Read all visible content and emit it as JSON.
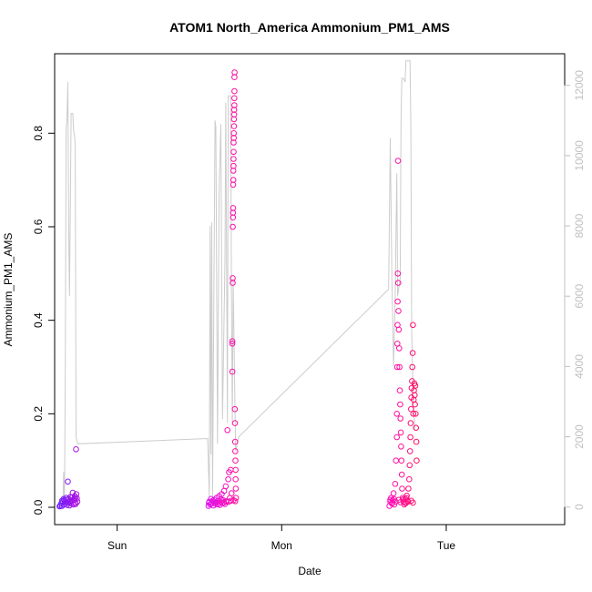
{
  "chart_data": {
    "type": "scatter",
    "title": "ATOM1 North_America Ammonium_PM1_AMS",
    "xlabel": "Date",
    "ylabel": "Ammonium_PM1_AMS",
    "x_unit": "days since Sunday 00:00",
    "xlim": [
      -0.38,
      2.72
    ],
    "ylim": [
      -0.037,
      0.97
    ],
    "y2lim": [
      -500,
      12900
    ],
    "x_ticks": [
      {
        "value": 0,
        "label": "Sun"
      },
      {
        "value": 1,
        "label": "Mon"
      },
      {
        "value": 2,
        "label": "Tue"
      }
    ],
    "y_ticks": [
      {
        "value": 0.0,
        "label": "0.0"
      },
      {
        "value": 0.2,
        "label": "0.2"
      },
      {
        "value": 0.4,
        "label": "0.4"
      },
      {
        "value": 0.6,
        "label": "0.6"
      },
      {
        "value": 0.8,
        "label": "0.8"
      }
    ],
    "y2_ticks": [
      {
        "value": 0,
        "label": "0"
      },
      {
        "value": 2000,
        "label": "2000"
      },
      {
        "value": 4000,
        "label": "4000"
      },
      {
        "value": 6000,
        "label": "6000"
      },
      {
        "value": 8000,
        "label": "8000"
      },
      {
        "value": 10000,
        "label": "10000"
      },
      {
        "value": 12000,
        "label": "12000"
      }
    ],
    "altitude_series": {
      "color": "#cccccc",
      "points": [
        [
          -0.33,
          0
        ],
        [
          -0.325,
          1000
        ],
        [
          -0.32,
          200
        ],
        [
          -0.315,
          4000
        ],
        [
          -0.31,
          10800
        ],
        [
          -0.305,
          11000
        ],
        [
          -0.3,
          12100
        ],
        [
          -0.295,
          8000
        ],
        [
          -0.29,
          6000
        ],
        [
          -0.285,
          8500
        ],
        [
          -0.28,
          11200
        ],
        [
          -0.27,
          11200
        ],
        [
          -0.265,
          10700
        ],
        [
          -0.26,
          10600
        ],
        [
          -0.255,
          10300
        ],
        [
          -0.25,
          2000
        ],
        [
          -0.24,
          1800
        ],
        [
          0.55,
          1950
        ],
        [
          0.56,
          300
        ],
        [
          0.565,
          8000
        ],
        [
          0.57,
          1500
        ],
        [
          0.575,
          8100
        ],
        [
          0.58,
          300
        ],
        [
          0.595,
          11000
        ],
        [
          0.6,
          10800
        ],
        [
          0.61,
          1800
        ],
        [
          0.62,
          9000
        ],
        [
          0.63,
          10900
        ],
        [
          0.64,
          2500
        ],
        [
          0.655,
          7000
        ],
        [
          0.66,
          11500
        ],
        [
          0.67,
          2400
        ],
        [
          0.675,
          11700
        ],
        [
          0.69,
          11700
        ],
        [
          0.695,
          5800
        ],
        [
          0.7,
          2400
        ],
        [
          0.705,
          6500
        ],
        [
          0.72,
          1600
        ],
        [
          0.74,
          2000
        ],
        [
          1.65,
          6200
        ],
        [
          1.66,
          10500
        ],
        [
          1.67,
          6500
        ],
        [
          1.68,
          4000
        ],
        [
          1.69,
          6000
        ],
        [
          1.7,
          9500
        ],
        [
          1.705,
          6000
        ],
        [
          1.72,
          6500
        ],
        [
          1.725,
          11000
        ],
        [
          1.73,
          12200
        ],
        [
          1.74,
          12200
        ],
        [
          1.75,
          12100
        ],
        [
          1.755,
          12700
        ],
        [
          1.77,
          12700
        ],
        [
          1.78,
          12700
        ],
        [
          1.785,
          10800
        ],
        [
          1.79,
          5000
        ],
        [
          1.8,
          3000
        ],
        [
          1.81,
          2200
        ]
      ]
    },
    "series": [
      {
        "color_start": "#6a1fff",
        "color_end": "#b010e0",
        "points": [
          [
            -0.35,
            0.002
          ],
          [
            -0.345,
            0.004
          ],
          [
            -0.34,
            0.008
          ],
          [
            -0.335,
            0.003
          ],
          [
            -0.33,
            0.012
          ],
          [
            -0.325,
            0.006
          ],
          [
            -0.32,
            0.015
          ],
          [
            -0.315,
            0.009
          ],
          [
            -0.31,
            0.02
          ],
          [
            -0.305,
            0.005
          ],
          [
            -0.3,
            0.055
          ],
          [
            -0.298,
            0.011
          ],
          [
            -0.295,
            0.018
          ],
          [
            -0.29,
            0.004
          ],
          [
            -0.285,
            0.022
          ],
          [
            -0.28,
            0.008
          ],
          [
            -0.275,
            0.013
          ],
          [
            -0.27,
            0.031
          ],
          [
            -0.265,
            0.006
          ],
          [
            -0.26,
            0.016
          ],
          [
            -0.257,
            0.024
          ],
          [
            -0.255,
            0.01
          ],
          [
            -0.252,
            0.007
          ],
          [
            -0.25,
            0.124
          ],
          [
            -0.248,
            0.028
          ],
          [
            -0.245,
            0.019
          ],
          [
            -0.242,
            0.012
          ],
          [
            -0.335,
            0.014
          ],
          [
            -0.325,
            0.018
          ],
          [
            -0.315,
            0.012
          ],
          [
            -0.305,
            0.016
          ],
          [
            -0.295,
            0.01
          ],
          [
            -0.285,
            0.014
          ],
          [
            -0.275,
            0.021
          ],
          [
            -0.265,
            0.017
          ],
          [
            -0.255,
            0.02
          ]
        ]
      },
      {
        "color_start": "#e010f0",
        "color_end": "#ff10a0",
        "points": [
          [
            0.555,
            0.003
          ],
          [
            0.56,
            0.012
          ],
          [
            0.565,
            0.006
          ],
          [
            0.57,
            0.018
          ],
          [
            0.575,
            0.009
          ],
          [
            0.58,
            0.014
          ],
          [
            0.585,
            0.004
          ],
          [
            0.59,
            0.016
          ],
          [
            0.595,
            0.008
          ],
          [
            0.6,
            0.011
          ],
          [
            0.605,
            0.02
          ],
          [
            0.61,
            0.006
          ],
          [
            0.615,
            0.013
          ],
          [
            0.62,
            0.024
          ],
          [
            0.625,
            0.005
          ],
          [
            0.63,
            0.017
          ],
          [
            0.635,
            0.028
          ],
          [
            0.64,
            0.009
          ],
          [
            0.645,
            0.015
          ],
          [
            0.65,
            0.035
          ],
          [
            0.655,
            0.007
          ],
          [
            0.66,
            0.045
          ],
          [
            0.665,
            0.012
          ],
          [
            0.67,
            0.165
          ],
          [
            0.675,
            0.06
          ],
          [
            0.68,
            0.075
          ],
          [
            0.685,
            0.02
          ],
          [
            0.69,
            0.08
          ],
          [
            0.695,
            0.03
          ],
          [
            0.7,
            0.29
          ],
          [
            0.7,
            0.35
          ],
          [
            0.7,
            0.355
          ],
          [
            0.702,
            0.48
          ],
          [
            0.702,
            0.49
          ],
          [
            0.703,
            0.6
          ],
          [
            0.704,
            0.62
          ],
          [
            0.704,
            0.63
          ],
          [
            0.705,
            0.64
          ],
          [
            0.705,
            0.69
          ],
          [
            0.706,
            0.7
          ],
          [
            0.706,
            0.72
          ],
          [
            0.707,
            0.73
          ],
          [
            0.707,
            0.745
          ],
          [
            0.708,
            0.76
          ],
          [
            0.708,
            0.78
          ],
          [
            0.709,
            0.79
          ],
          [
            0.709,
            0.8
          ],
          [
            0.71,
            0.815
          ],
          [
            0.71,
            0.83
          ],
          [
            0.711,
            0.84
          ],
          [
            0.711,
            0.85
          ],
          [
            0.712,
            0.86
          ],
          [
            0.712,
            0.875
          ],
          [
            0.713,
            0.89
          ],
          [
            0.713,
            0.92
          ],
          [
            0.714,
            0.93
          ],
          [
            0.715,
            0.21
          ],
          [
            0.716,
            0.18
          ],
          [
            0.717,
            0.14
          ],
          [
            0.718,
            0.12
          ],
          [
            0.719,
            0.1
          ],
          [
            0.72,
            0.08
          ],
          [
            0.72,
            0.06
          ],
          [
            0.721,
            0.04
          ],
          [
            0.722,
            0.02
          ],
          [
            0.558,
            0.01
          ],
          [
            0.572,
            0.008
          ],
          [
            0.588,
            0.012
          ],
          [
            0.602,
            0.01
          ],
          [
            0.618,
            0.009
          ],
          [
            0.632,
            0.011
          ],
          [
            0.648,
            0.01
          ],
          [
            0.662,
            0.013
          ],
          [
            0.678,
            0.012
          ],
          [
            0.692,
            0.014
          ],
          [
            0.708,
            0.015
          ],
          [
            0.718,
            0.013
          ]
        ]
      },
      {
        "color_start": "#ff10c0",
        "color_end": "#ff1060",
        "points": [
          [
            1.655,
            0.003
          ],
          [
            1.66,
            0.012
          ],
          [
            1.665,
            0.02
          ],
          [
            1.67,
            0.008
          ],
          [
            1.675,
            0.015
          ],
          [
            1.68,
            0.03
          ],
          [
            1.685,
            0.006
          ],
          [
            1.69,
            0.05
          ],
          [
            1.695,
            0.1
          ],
          [
            1.7,
            0.15
          ],
          [
            1.7,
            0.2
          ],
          [
            1.702,
            0.3
          ],
          [
            1.703,
            0.35
          ],
          [
            1.704,
            0.39
          ],
          [
            1.705,
            0.44
          ],
          [
            1.706,
            0.5
          ],
          [
            1.707,
            0.741
          ],
          [
            1.708,
            0.48
          ],
          [
            1.71,
            0.42
          ],
          [
            1.712,
            0.38
          ],
          [
            1.714,
            0.34
          ],
          [
            1.716,
            0.3
          ],
          [
            1.718,
            0.25
          ],
          [
            1.72,
            0.22
          ],
          [
            1.722,
            0.19
          ],
          [
            1.724,
            0.16
          ],
          [
            1.726,
            0.13
          ],
          [
            1.728,
            0.1
          ],
          [
            1.73,
            0.07
          ],
          [
            1.732,
            0.04
          ],
          [
            1.735,
            0.02
          ],
          [
            1.74,
            0.012
          ],
          [
            1.745,
            0.006
          ],
          [
            1.75,
            0.018
          ],
          [
            1.755,
            0.009
          ],
          [
            1.76,
            0.025
          ],
          [
            1.765,
            0.014
          ],
          [
            1.77,
            0.04
          ],
          [
            1.775,
            0.06
          ],
          [
            1.778,
            0.09
          ],
          [
            1.78,
            0.12
          ],
          [
            1.782,
            0.15
          ],
          [
            1.784,
            0.18
          ],
          [
            1.786,
            0.21
          ],
          [
            1.788,
            0.235
          ],
          [
            1.79,
            0.255
          ],
          [
            1.792,
            0.27
          ],
          [
            1.794,
            0.3
          ],
          [
            1.796,
            0.33
          ],
          [
            1.798,
            0.39
          ],
          [
            1.8,
            0.2
          ],
          [
            1.802,
            0.23
          ],
          [
            1.804,
            0.25
          ],
          [
            1.806,
            0.265
          ],
          [
            1.808,
            0.24
          ],
          [
            1.81,
            0.22
          ],
          [
            1.812,
            0.26
          ],
          [
            1.814,
            0.2
          ],
          [
            1.816,
            0.17
          ],
          [
            1.818,
            0.14
          ],
          [
            1.82,
            0.1
          ],
          [
            1.66,
            0.016
          ],
          [
            1.672,
            0.01
          ],
          [
            1.682,
            0.018
          ],
          [
            1.692,
            0.012
          ],
          [
            1.712,
            0.016
          ],
          [
            1.722,
            0.011
          ],
          [
            1.738,
            0.017
          ],
          [
            1.748,
            0.01
          ],
          [
            1.758,
            0.02
          ],
          [
            1.768,
            0.012
          ],
          [
            1.788,
            0.014
          ],
          [
            1.798,
            0.01
          ]
        ]
      }
    ]
  }
}
